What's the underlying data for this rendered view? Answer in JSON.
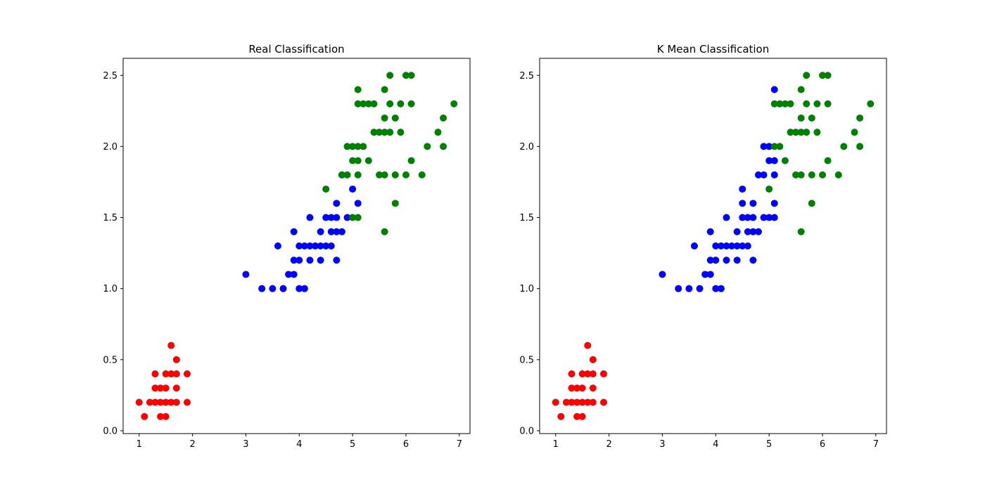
{
  "colors": {
    "red": "#ff0000",
    "blue": "#0000ff",
    "green": "#008000"
  },
  "chart_data": [
    {
      "type": "scatter",
      "title": "Real Classification",
      "xlim": [
        0.7,
        7.2
      ],
      "ylim": [
        -0.02,
        2.62
      ],
      "xticks": [
        1,
        2,
        3,
        4,
        5,
        6,
        7
      ],
      "yticks": [
        0.0,
        0.5,
        1.0,
        1.5,
        2.0,
        2.5
      ],
      "xtick_labels": [
        "1",
        "2",
        "3",
        "4",
        "5",
        "6",
        "7"
      ],
      "ytick_labels": [
        "0.0",
        "0.5",
        "1.0",
        "1.5",
        "2.0",
        "2.5"
      ],
      "grid": false,
      "series": [
        {
          "color": "red",
          "points": [
            [
              1.0,
              0.2
            ],
            [
              1.1,
              0.1
            ],
            [
              1.2,
              0.2
            ],
            [
              1.3,
              0.2
            ],
            [
              1.3,
              0.3
            ],
            [
              1.3,
              0.4
            ],
            [
              1.4,
              0.1
            ],
            [
              1.4,
              0.2
            ],
            [
              1.4,
              0.3
            ],
            [
              1.5,
              0.1
            ],
            [
              1.5,
              0.2
            ],
            [
              1.5,
              0.3
            ],
            [
              1.5,
              0.4
            ],
            [
              1.6,
              0.2
            ],
            [
              1.6,
              0.4
            ],
            [
              1.6,
              0.6
            ],
            [
              1.7,
              0.2
            ],
            [
              1.7,
              0.3
            ],
            [
              1.7,
              0.4
            ],
            [
              1.7,
              0.5
            ],
            [
              1.9,
              0.2
            ],
            [
              1.9,
              0.4
            ]
          ]
        },
        {
          "color": "blue",
          "points": [
            [
              3.0,
              1.1
            ],
            [
              3.3,
              1.0
            ],
            [
              3.5,
              1.0
            ],
            [
              3.6,
              1.3
            ],
            [
              3.7,
              1.0
            ],
            [
              3.8,
              1.1
            ],
            [
              3.9,
              1.1
            ],
            [
              3.9,
              1.2
            ],
            [
              3.9,
              1.4
            ],
            [
              4.0,
              1.0
            ],
            [
              4.0,
              1.2
            ],
            [
              4.0,
              1.3
            ],
            [
              4.1,
              1.0
            ],
            [
              4.1,
              1.3
            ],
            [
              4.2,
              1.2
            ],
            [
              4.2,
              1.3
            ],
            [
              4.2,
              1.5
            ],
            [
              4.3,
              1.3
            ],
            [
              4.4,
              1.2
            ],
            [
              4.4,
              1.3
            ],
            [
              4.4,
              1.4
            ],
            [
              4.5,
              1.3
            ],
            [
              4.5,
              1.5
            ],
            [
              4.6,
              1.3
            ],
            [
              4.6,
              1.4
            ],
            [
              4.6,
              1.5
            ],
            [
              4.7,
              1.2
            ],
            [
              4.7,
              1.4
            ],
            [
              4.7,
              1.5
            ],
            [
              4.7,
              1.6
            ],
            [
              4.8,
              1.4
            ],
            [
              4.8,
              1.8
            ],
            [
              4.9,
              1.5
            ],
            [
              5.0,
              1.7
            ],
            [
              5.1,
              1.6
            ]
          ]
        },
        {
          "color": "green",
          "points": [
            [
              4.5,
              1.7
            ],
            [
              4.8,
              1.8
            ],
            [
              4.9,
              1.8
            ],
            [
              4.9,
              2.0
            ],
            [
              5.0,
              1.5
            ],
            [
              5.0,
              1.9
            ],
            [
              5.0,
              2.0
            ],
            [
              5.1,
              1.5
            ],
            [
              5.1,
              1.8
            ],
            [
              5.1,
              1.9
            ],
            [
              5.1,
              2.0
            ],
            [
              5.1,
              2.3
            ],
            [
              5.1,
              2.4
            ],
            [
              5.2,
              2.0
            ],
            [
              5.2,
              2.3
            ],
            [
              5.3,
              1.9
            ],
            [
              5.3,
              2.3
            ],
            [
              5.4,
              2.1
            ],
            [
              5.4,
              2.3
            ],
            [
              5.5,
              1.8
            ],
            [
              5.5,
              2.1
            ],
            [
              5.6,
              1.4
            ],
            [
              5.6,
              1.8
            ],
            [
              5.6,
              2.1
            ],
            [
              5.6,
              2.2
            ],
            [
              5.6,
              2.4
            ],
            [
              5.7,
              2.1
            ],
            [
              5.7,
              2.3
            ],
            [
              5.7,
              2.5
            ],
            [
              5.8,
              1.6
            ],
            [
              5.8,
              1.8
            ],
            [
              5.8,
              2.2
            ],
            [
              5.9,
              2.1
            ],
            [
              5.9,
              2.3
            ],
            [
              6.0,
              1.8
            ],
            [
              6.0,
              2.5
            ],
            [
              6.1,
              1.9
            ],
            [
              6.1,
              2.3
            ],
            [
              6.1,
              2.5
            ],
            [
              6.3,
              1.8
            ],
            [
              6.4,
              2.0
            ],
            [
              6.6,
              2.1
            ],
            [
              6.7,
              2.0
            ],
            [
              6.7,
              2.2
            ],
            [
              6.9,
              2.3
            ]
          ]
        }
      ]
    },
    {
      "type": "scatter",
      "title": "K Mean Classification",
      "xlim": [
        0.7,
        7.2
      ],
      "ylim": [
        -0.02,
        2.62
      ],
      "xticks": [
        1,
        2,
        3,
        4,
        5,
        6,
        7
      ],
      "yticks": [
        0.0,
        0.5,
        1.0,
        1.5,
        2.0,
        2.5
      ],
      "xtick_labels": [
        "1",
        "2",
        "3",
        "4",
        "5",
        "6",
        "7"
      ],
      "ytick_labels": [
        "0.0",
        "0.5",
        "1.0",
        "1.5",
        "2.0",
        "2.5"
      ],
      "grid": false,
      "series": [
        {
          "color": "red",
          "points": [
            [
              1.0,
              0.2
            ],
            [
              1.1,
              0.1
            ],
            [
              1.2,
              0.2
            ],
            [
              1.3,
              0.2
            ],
            [
              1.3,
              0.3
            ],
            [
              1.3,
              0.4
            ],
            [
              1.4,
              0.1
            ],
            [
              1.4,
              0.2
            ],
            [
              1.4,
              0.3
            ],
            [
              1.5,
              0.1
            ],
            [
              1.5,
              0.2
            ],
            [
              1.5,
              0.3
            ],
            [
              1.5,
              0.4
            ],
            [
              1.6,
              0.2
            ],
            [
              1.6,
              0.4
            ],
            [
              1.6,
              0.6
            ],
            [
              1.7,
              0.2
            ],
            [
              1.7,
              0.3
            ],
            [
              1.7,
              0.4
            ],
            [
              1.7,
              0.5
            ],
            [
              1.9,
              0.2
            ],
            [
              1.9,
              0.4
            ]
          ]
        },
        {
          "color": "blue",
          "points": [
            [
              3.0,
              1.1
            ],
            [
              3.3,
              1.0
            ],
            [
              3.5,
              1.0
            ],
            [
              3.6,
              1.3
            ],
            [
              3.7,
              1.0
            ],
            [
              3.8,
              1.1
            ],
            [
              3.9,
              1.1
            ],
            [
              3.9,
              1.2
            ],
            [
              3.9,
              1.4
            ],
            [
              4.0,
              1.0
            ],
            [
              4.0,
              1.2
            ],
            [
              4.0,
              1.3
            ],
            [
              4.1,
              1.0
            ],
            [
              4.1,
              1.3
            ],
            [
              4.2,
              1.2
            ],
            [
              4.2,
              1.3
            ],
            [
              4.2,
              1.5
            ],
            [
              4.3,
              1.3
            ],
            [
              4.4,
              1.2
            ],
            [
              4.4,
              1.3
            ],
            [
              4.4,
              1.4
            ],
            [
              4.5,
              1.3
            ],
            [
              4.5,
              1.5
            ],
            [
              4.5,
              1.6
            ],
            [
              4.5,
              1.7
            ],
            [
              4.6,
              1.3
            ],
            [
              4.6,
              1.4
            ],
            [
              4.6,
              1.5
            ],
            [
              4.7,
              1.2
            ],
            [
              4.7,
              1.4
            ],
            [
              4.7,
              1.5
            ],
            [
              4.7,
              1.6
            ],
            [
              4.8,
              1.4
            ],
            [
              4.8,
              1.8
            ],
            [
              4.9,
              1.5
            ],
            [
              4.9,
              1.8
            ],
            [
              4.9,
              2.0
            ],
            [
              5.0,
              1.5
            ],
            [
              5.0,
              1.9
            ],
            [
              5.0,
              2.0
            ],
            [
              5.1,
              1.5
            ],
            [
              5.1,
              1.6
            ],
            [
              5.1,
              1.8
            ],
            [
              5.1,
              1.9
            ],
            [
              5.1,
              2.4
            ]
          ]
        },
        {
          "color": "green",
          "points": [
            [
              5.0,
              1.7
            ],
            [
              5.1,
              2.0
            ],
            [
              5.1,
              2.3
            ],
            [
              5.2,
              2.0
            ],
            [
              5.2,
              2.3
            ],
            [
              5.3,
              1.9
            ],
            [
              5.3,
              2.3
            ],
            [
              5.4,
              2.1
            ],
            [
              5.4,
              2.3
            ],
            [
              5.5,
              1.8
            ],
            [
              5.5,
              2.1
            ],
            [
              5.6,
              1.4
            ],
            [
              5.6,
              1.8
            ],
            [
              5.6,
              2.1
            ],
            [
              5.6,
              2.2
            ],
            [
              5.6,
              2.4
            ],
            [
              5.7,
              2.1
            ],
            [
              5.7,
              2.3
            ],
            [
              5.7,
              2.5
            ],
            [
              5.8,
              1.6
            ],
            [
              5.8,
              1.8
            ],
            [
              5.8,
              2.2
            ],
            [
              5.9,
              2.1
            ],
            [
              5.9,
              2.3
            ],
            [
              6.0,
              1.8
            ],
            [
              6.0,
              2.5
            ],
            [
              6.1,
              1.9
            ],
            [
              6.1,
              2.3
            ],
            [
              6.1,
              2.5
            ],
            [
              6.3,
              1.8
            ],
            [
              6.4,
              2.0
            ],
            [
              6.6,
              2.1
            ],
            [
              6.7,
              2.0
            ],
            [
              6.7,
              2.2
            ],
            [
              6.9,
              2.3
            ]
          ]
        }
      ]
    }
  ]
}
